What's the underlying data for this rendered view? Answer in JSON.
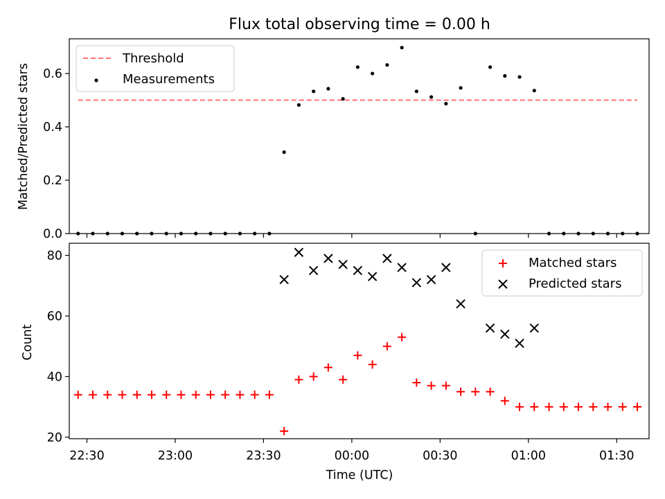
{
  "colors": {
    "threshold": "#ff7070",
    "measurements": "#000000",
    "matched": "#ff0000",
    "predicted": "#000000",
    "axes": "#000000",
    "background": "#ffffff"
  },
  "chart_data": [
    {
      "type": "scatter",
      "title": "Flux total observing time = 0.00 h",
      "xlabel": "",
      "ylabel": "Matched/Predicted stars",
      "xlim": [
        "22:24",
        "01:41"
      ],
      "ylim": [
        0,
        0.73
      ],
      "yticks": [
        "0.0",
        "0.2",
        "0.4",
        "0.6"
      ],
      "grid": false,
      "legend": {
        "placement": "top-left",
        "entries": [
          "Threshold",
          "Measurements"
        ]
      },
      "series": [
        {
          "name": "Threshold",
          "style": "dashed-line",
          "color": "#ff7070",
          "x": [
            "22:27",
            "01:37"
          ],
          "y": [
            0.5,
            0.5
          ]
        },
        {
          "name": "Measurements",
          "style": "dot",
          "color": "#000000",
          "x": [
            "22:27",
            "22:32",
            "22:37",
            "22:42",
            "22:47",
            "22:52",
            "22:57",
            "23:02",
            "23:07",
            "23:12",
            "23:17",
            "23:22",
            "23:27",
            "23:32",
            "23:37",
            "23:42",
            "23:47",
            "23:52",
            "23:57",
            "00:02",
            "00:07",
            "00:12",
            "00:17",
            "00:22",
            "00:27",
            "00:32",
            "00:37",
            "00:42",
            "00:47",
            "00:52",
            "00:57",
            "01:02",
            "01:07",
            "01:12",
            "01:17",
            "01:22",
            "01:27",
            "01:32",
            "01:37"
          ],
          "y": [
            0,
            0,
            0,
            0,
            0,
            0,
            0,
            0,
            0,
            0,
            0,
            0,
            0,
            0,
            0.305,
            0.482,
            0.533,
            0.543,
            0.505,
            0.624,
            0.6,
            0.632,
            0.697,
            0.533,
            0.512,
            0.487,
            0.546,
            0,
            0.624,
            0.591,
            0.587,
            0.536,
            0,
            0,
            0,
            0,
            0,
            0,
            0
          ]
        }
      ]
    },
    {
      "type": "scatter",
      "title": "",
      "xlabel": "Time (UTC)",
      "ylabel": "Count",
      "xlim": [
        "22:24",
        "01:41"
      ],
      "ylim": [
        19.5,
        84
      ],
      "xticks": [
        "22:30",
        "23:00",
        "23:30",
        "00:00",
        "00:30",
        "01:00",
        "01:30"
      ],
      "yticks": [
        "20",
        "40",
        "60",
        "80"
      ],
      "grid": false,
      "legend": {
        "placement": "top-right",
        "entries": [
          "Matched stars",
          "Predicted stars"
        ]
      },
      "series": [
        {
          "name": "Matched stars",
          "marker": "+",
          "color": "#ff0000",
          "x": [
            "22:27",
            "22:32",
            "22:37",
            "22:42",
            "22:47",
            "22:52",
            "22:57",
            "23:02",
            "23:07",
            "23:12",
            "23:17",
            "23:22",
            "23:27",
            "23:32",
            "23:37",
            "23:42",
            "23:47",
            "23:52",
            "23:57",
            "00:02",
            "00:07",
            "00:12",
            "00:17",
            "00:22",
            "00:27",
            "00:32",
            "00:37",
            "00:42",
            "00:47",
            "00:52",
            "00:57",
            "01:02",
            "01:07",
            "01:12",
            "01:17",
            "01:22",
            "01:27",
            "01:32",
            "01:37"
          ],
          "y": [
            34,
            34,
            34,
            34,
            34,
            34,
            34,
            34,
            34,
            34,
            34,
            34,
            34,
            34,
            22,
            39,
            40,
            43,
            39,
            47,
            44,
            50,
            53,
            38,
            37,
            37,
            35,
            35,
            35,
            32,
            30,
            30,
            30,
            30,
            30,
            30,
            30,
            30,
            30
          ]
        },
        {
          "name": "Predicted stars",
          "marker": "x",
          "color": "#000000",
          "x": [
            "23:37",
            "23:42",
            "23:47",
            "23:52",
            "23:57",
            "00:02",
            "00:07",
            "00:12",
            "00:17",
            "00:22",
            "00:27",
            "00:32",
            "00:37",
            "00:47",
            "00:52",
            "00:57",
            "01:02"
          ],
          "y": [
            72,
            81,
            75,
            79,
            77,
            75,
            73,
            79,
            76,
            71,
            72,
            76,
            64,
            56,
            54,
            51,
            56
          ]
        }
      ]
    }
  ]
}
